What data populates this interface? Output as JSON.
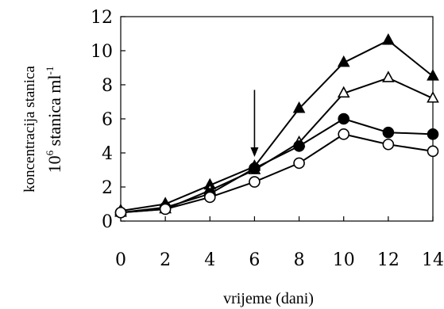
{
  "chart_data": {
    "type": "line",
    "title": "",
    "xlabel": "vrijeme (dani)",
    "ylabel_line1": "koncentracija stanica",
    "ylabel_line2_prefix": "10",
    "ylabel_line2_exp": "6",
    "ylabel_line2_mid": " stanica ml",
    "ylabel_line2_exp2": "-1",
    "xlim": [
      0,
      14
    ],
    "ylim": [
      0,
      12
    ],
    "xticks": [
      0,
      2,
      4,
      6,
      8,
      10,
      12,
      14
    ],
    "yticks": [
      0,
      2,
      4,
      6,
      8,
      10,
      12
    ],
    "grid": false,
    "legend": "none",
    "x": [
      0,
      2,
      4,
      6,
      8,
      10,
      12,
      14
    ],
    "series": [
      {
        "marker": "filled-triangle",
        "values": [
          0.6,
          1.0,
          2.1,
          3.2,
          6.6,
          9.3,
          10.6,
          8.5
        ]
      },
      {
        "marker": "open-triangle",
        "values": [
          0.5,
          0.7,
          1.8,
          3.0,
          4.6,
          7.5,
          8.4,
          7.2
        ]
      },
      {
        "marker": "filled-circle",
        "values": [
          0.5,
          0.8,
          1.6,
          3.1,
          4.4,
          6.0,
          5.2,
          5.1
        ]
      },
      {
        "marker": "open-circle",
        "values": [
          0.5,
          0.7,
          1.4,
          2.3,
          3.4,
          5.1,
          4.5,
          4.1
        ]
      }
    ],
    "annotation": {
      "type": "arrow",
      "x": 6,
      "points_to_y": 3.3
    },
    "colors": {
      "line": "#000000",
      "open_fill": "#ffffff",
      "filled": "#000000"
    }
  }
}
